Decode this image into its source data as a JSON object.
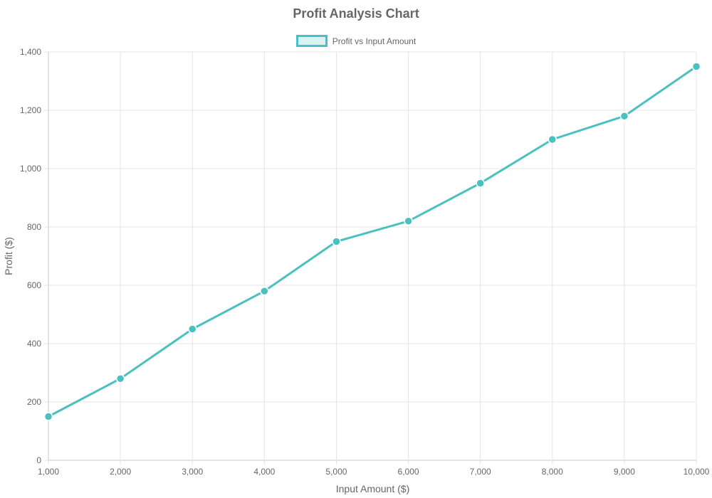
{
  "colors": {
    "line": "#4bc0c0",
    "fill": "rgba(75,192,192,0.2)",
    "grid": "#e5e5e5",
    "axis": "#c8c8c8",
    "text": "#666666"
  },
  "chart_data": {
    "type": "line",
    "title": "Profit Analysis Chart",
    "xlabel": "Input Amount ($)",
    "ylabel": "Profit ($)",
    "x": [
      1000,
      2000,
      3000,
      4000,
      5000,
      6000,
      7000,
      8000,
      9000,
      10000
    ],
    "x_tick_labels": [
      "1,000",
      "2,000",
      "3,000",
      "4,000",
      "5,000",
      "6,000",
      "7,000",
      "8,000",
      "9,000",
      "10,000"
    ],
    "xlim": [
      1000,
      10000
    ],
    "y_ticks": [
      0,
      200,
      400,
      600,
      800,
      1000,
      1200,
      1400
    ],
    "y_tick_labels": [
      "0",
      "200",
      "400",
      "600",
      "800",
      "1,000",
      "1,200",
      "1,400"
    ],
    "ylim": [
      0,
      1400
    ],
    "series": [
      {
        "name": "Profit vs Input Amount",
        "values": [
          150,
          280,
          450,
          580,
          750,
          820,
          950,
          1100,
          1180,
          1350
        ]
      }
    ],
    "grid": true,
    "legend_position": "top-center"
  }
}
